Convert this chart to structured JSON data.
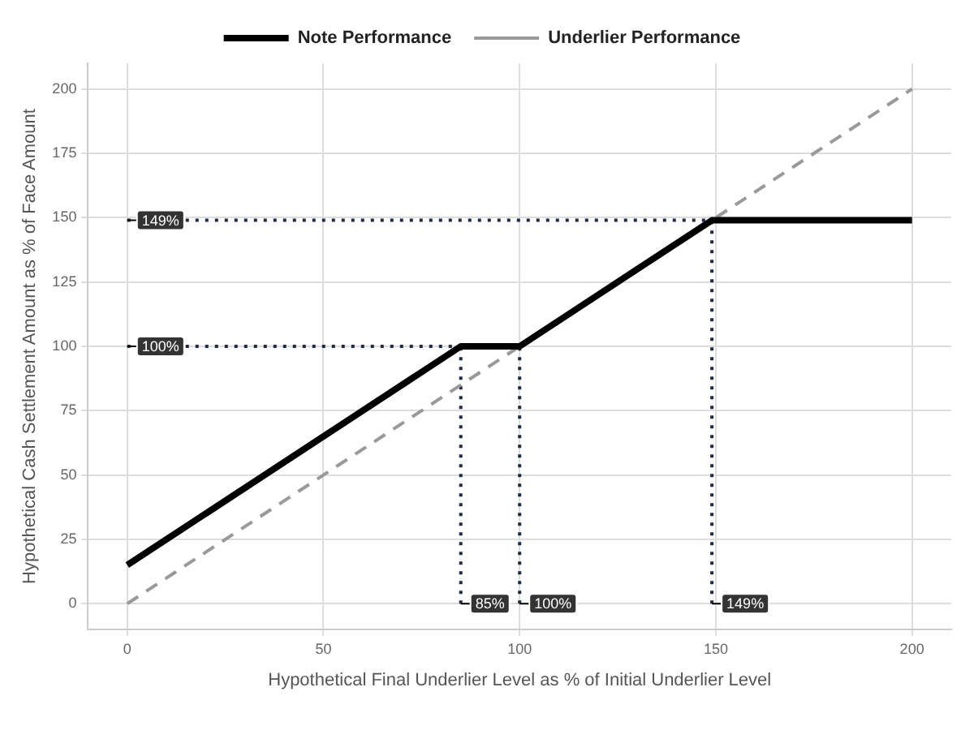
{
  "chart_data": {
    "type": "line",
    "xlabel": "Hypothetical Final Underlier Level as % of Initial Underlier Level",
    "ylabel": "Hypothetical Cash Settlement Amount as % of Face Amount",
    "xlim": [
      -10,
      210
    ],
    "xticks": [
      0,
      50,
      100,
      150,
      200
    ],
    "ylim": [
      -10,
      210
    ],
    "yticks": [
      0,
      25,
      50,
      75,
      100,
      125,
      150,
      175,
      200
    ],
    "grid": true,
    "legend": "top",
    "marker": "none",
    "series": [
      {
        "x": [
          0,
          149
        ],
        "values": [
          149,
          149
        ],
        "color": "#1f2a44",
        "line_style": "dotted"
      },
      {
        "x": [
          0,
          100
        ],
        "values": [
          100,
          100
        ],
        "color": "#1f2a44",
        "line_style": "dotted"
      },
      {
        "x": [
          85,
          85
        ],
        "values": [
          0,
          100
        ],
        "color": "#1f2a44",
        "line_style": "dotted"
      },
      {
        "x": [
          100,
          100
        ],
        "values": [
          0,
          100
        ],
        "color": "#1f2a44",
        "line_style": "dotted"
      },
      {
        "x": [
          149,
          149
        ],
        "values": [
          0,
          149
        ],
        "color": "#1f2a44",
        "line_style": "dotted"
      },
      {
        "name": "Note Performance",
        "x": [
          0,
          85,
          100,
          149,
          200
        ],
        "values": [
          15,
          100,
          100,
          149,
          149
        ],
        "color": "#000000",
        "line_style": "solid"
      },
      {
        "name": "Underlier Performance",
        "x": [
          0,
          200
        ],
        "values": [
          0,
          200
        ],
        "color": "#999999",
        "line_style": "dashed"
      }
    ],
    "annotations": [
      {
        "text": "149%",
        "x": 0,
        "y": 149
      },
      {
        "text": "100%",
        "x": 0,
        "y": 100
      },
      {
        "text": "85%",
        "x": 85,
        "y": 0
      },
      {
        "text": "100%",
        "x": 100,
        "y": 0
      },
      {
        "text": "149%",
        "x": 149,
        "y": 0
      }
    ]
  }
}
